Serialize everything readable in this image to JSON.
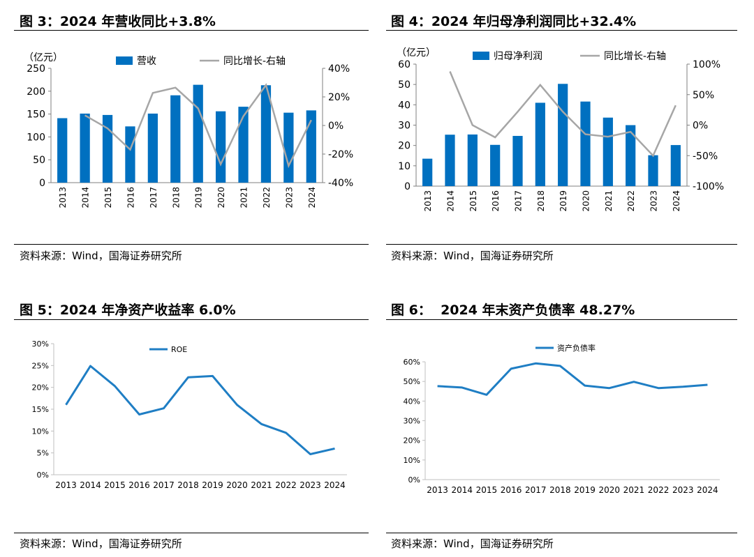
{
  "panels": [
    {
      "title": "图 3：2024 年营收同比+3.8%",
      "source": "资料来源：Wind，国海证券研究所"
    },
    {
      "title": "图 4：2024 年归母净利润同比+32.4%",
      "source": "资料来源：Wind，国海证券研究所"
    },
    {
      "title": "图 5：2024 年净资产收益率 6.0%",
      "source": "资料来源：Wind，国海证券研究所"
    },
    {
      "title": "图 6：  2024 年末资产负债率 48.27%",
      "source": "资料来源：Wind，国海证券研究所"
    }
  ],
  "colors": {
    "bar": "#0070C0",
    "line_gray": "#A6A6A6",
    "line_blue": "#1F7EC4",
    "axis": "#7F7F7F"
  },
  "chart_data": [
    {
      "type": "bar",
      "unit_label": "（亿元）",
      "categories": [
        "2013",
        "2014",
        "2015",
        "2016",
        "2017",
        "2018",
        "2019",
        "2020",
        "2021",
        "2022",
        "2023",
        "2024"
      ],
      "series": [
        {
          "name": "营收",
          "type": "bar",
          "axis": "left",
          "values": [
            141,
            151,
            148,
            123,
            151,
            191,
            214,
            156,
            166,
            213,
            153,
            158
          ]
        },
        {
          "name": "同比增长-右轴",
          "type": "line",
          "axis": "right",
          "values": [
            null,
            7.1,
            -2.0,
            -16.9,
            22.8,
            26.5,
            12.0,
            -27.1,
            6.4,
            28.3,
            -28.2,
            3.8
          ]
        }
      ],
      "y_left": {
        "range": [
          0,
          250
        ],
        "ticks": [
          "0",
          "50",
          "100",
          "150",
          "200",
          "250"
        ]
      },
      "y_right": {
        "range": [
          -40,
          40
        ],
        "ticks": [
          "-40%",
          "-20%",
          "0%",
          "20%",
          "40%"
        ]
      },
      "legend_position": "top"
    },
    {
      "type": "bar",
      "unit_label": "（亿元）",
      "categories": [
        "2013",
        "2014",
        "2015",
        "2016",
        "2017",
        "2018",
        "2019",
        "2020",
        "2021",
        "2022",
        "2023",
        "2024"
      ],
      "series": [
        {
          "name": "归母净利润",
          "type": "bar",
          "axis": "left",
          "values": [
            13.5,
            25.3,
            25.4,
            20.3,
            24.7,
            41.0,
            50.3,
            41.6,
            33.7,
            30.0,
            15.2,
            20.2
          ]
        },
        {
          "name": "同比增长-右轴",
          "type": "line",
          "axis": "right",
          "values": [
            null,
            88,
            0,
            -20,
            22,
            66,
            22,
            -15,
            -19,
            -11,
            -50,
            32.4
          ]
        }
      ],
      "y_left": {
        "range": [
          0,
          60
        ],
        "ticks": [
          "0",
          "10",
          "20",
          "30",
          "40",
          "50",
          "60"
        ]
      },
      "y_right": {
        "range": [
          -100,
          100
        ],
        "ticks": [
          "-100%",
          "-50%",
          "0%",
          "50%",
          "100%"
        ]
      },
      "legend_position": "top"
    },
    {
      "type": "line",
      "categories": [
        "2013",
        "2014",
        "2015",
        "2016",
        "2017",
        "2018",
        "2019",
        "2020",
        "2021",
        "2022",
        "2023",
        "2024"
      ],
      "series": [
        {
          "name": "ROE",
          "values": [
            16.0,
            24.9,
            20.3,
            13.8,
            15.2,
            22.3,
            22.6,
            16.0,
            11.6,
            9.6,
            4.7,
            6.0
          ]
        }
      ],
      "y": {
        "range": [
          0,
          30
        ],
        "ticks": [
          "0%",
          "5%",
          "10%",
          "15%",
          "20%",
          "25%",
          "30%"
        ]
      },
      "legend_position": "top"
    },
    {
      "type": "line",
      "categories": [
        "2013",
        "2014",
        "2015",
        "2016",
        "2017",
        "2018",
        "2019",
        "2020",
        "2021",
        "2022",
        "2023",
        "2024"
      ],
      "series": [
        {
          "name": "资产负债率",
          "values": [
            47.6,
            46.9,
            43.2,
            56.5,
            59.2,
            57.9,
            47.9,
            46.6,
            49.8,
            46.6,
            47.3,
            48.27
          ]
        }
      ],
      "y": {
        "range": [
          0,
          60
        ],
        "ticks": [
          "0%",
          "10%",
          "20%",
          "30%",
          "40%",
          "50%",
          "60%"
        ]
      },
      "legend_position": "top"
    }
  ]
}
